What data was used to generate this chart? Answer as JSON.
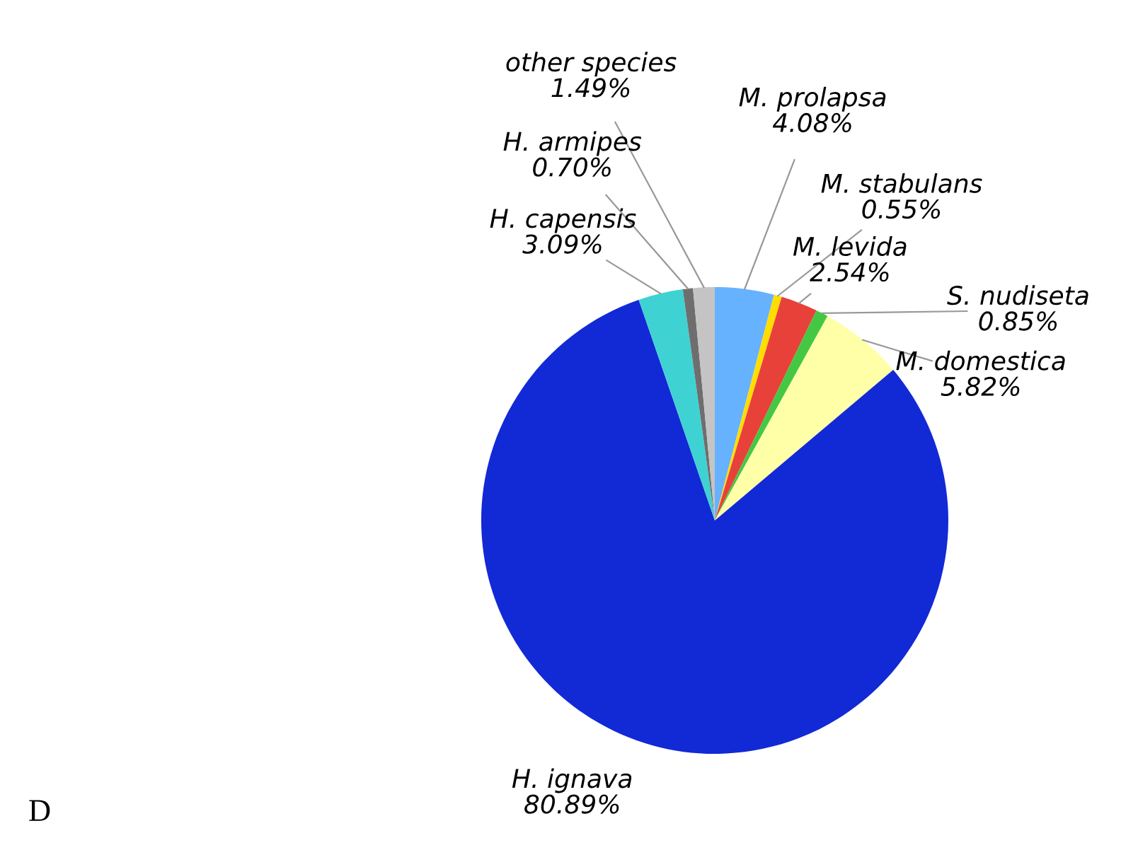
{
  "chart_data": {
    "type": "pie",
    "categories": [
      "M. prolapsa",
      "M. stabulans",
      "M. levida",
      "S. nudiseta",
      "M. domestica",
      "H. ignava",
      "H. capensis",
      "H. armipes",
      "other species"
    ],
    "values": [
      4.08,
      0.55,
      2.54,
      0.85,
      5.82,
      80.89,
      3.09,
      0.7,
      1.49
    ],
    "value_labels": [
      "4.08%",
      "0.55%",
      "2.54%",
      "0.85%",
      "5.82%",
      "80.89%",
      "3.09%",
      "0.70%",
      "1.49%"
    ],
    "colors": [
      "#66b2ff",
      "#ffdd00",
      "#e8413a",
      "#44c844",
      "#ffffa8",
      "#1229d6",
      "#3fd2d2",
      "#6e6e6e",
      "#c4c4c4"
    ],
    "annotations": [
      "D"
    ],
    "legend": false
  }
}
